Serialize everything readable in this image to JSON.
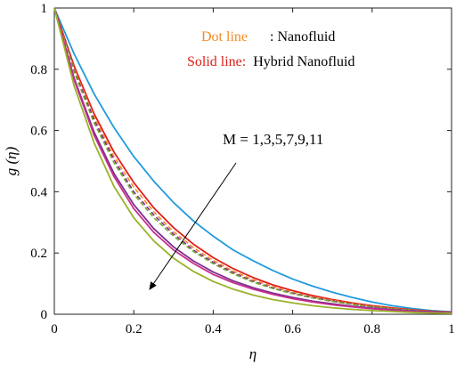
{
  "chart_data": {
    "type": "line",
    "xlabel": "η",
    "ylabel": "g (η)",
    "xlim": [
      0,
      1
    ],
    "ylim": [
      0,
      1
    ],
    "xticks": [
      "0",
      "0.2",
      "0.4",
      "0.6",
      "0.8",
      "1"
    ],
    "yticks": [
      "0",
      "0.2",
      "0.4",
      "0.6",
      "0.8",
      "1"
    ],
    "legend": {
      "dot_key": "Dot line",
      "dot_value": ": Nanofluid",
      "solid_key": "Solid line:",
      "solid_value": "Hybrid Nanofluid",
      "dot_color": "#F28C28",
      "solid_color": "#E0201B",
      "placement": "top-right"
    },
    "annotation": {
      "text": "M = 1,3,5,7,9,11"
    },
    "x": [
      0,
      0.05,
      0.1,
      0.15,
      0.2,
      0.25,
      0.3,
      0.35,
      0.4,
      0.45,
      0.5,
      0.55,
      0.6,
      0.65,
      0.7,
      0.75,
      0.8,
      0.85,
      0.9,
      0.95,
      1.0
    ],
    "series": [
      {
        "style": "solid",
        "color": "#1F9BDE",
        "values": [
          1.0,
          0.85,
          0.72,
          0.61,
          0.515,
          0.435,
          0.365,
          0.305,
          0.255,
          0.21,
          0.175,
          0.143,
          0.115,
          0.092,
          0.072,
          0.055,
          0.04,
          0.028,
          0.019,
          0.012,
          0.008
        ]
      },
      {
        "style": "solid",
        "color": "#E0201B",
        "values": [
          1.0,
          0.81,
          0.655,
          0.53,
          0.43,
          0.348,
          0.283,
          0.229,
          0.185,
          0.149,
          0.12,
          0.096,
          0.077,
          0.061,
          0.048,
          0.037,
          0.028,
          0.021,
          0.015,
          0.01,
          0.007
        ]
      },
      {
        "style": "dashed",
        "color": "#F28C28",
        "values": [
          1.0,
          0.8,
          0.645,
          0.515,
          0.415,
          0.335,
          0.27,
          0.218,
          0.176,
          0.141,
          0.113,
          0.09,
          0.072,
          0.057,
          0.045,
          0.035,
          0.026,
          0.019,
          0.014,
          0.009,
          0.006
        ]
      },
      {
        "style": "dashed",
        "color": "#7E2F8E",
        "values": [
          1.0,
          0.795,
          0.635,
          0.505,
          0.4,
          0.325,
          0.262,
          0.21,
          0.17,
          0.136,
          0.108,
          0.086,
          0.069,
          0.055,
          0.043,
          0.033,
          0.025,
          0.018,
          0.013,
          0.009,
          0.006
        ]
      },
      {
        "style": "dashed",
        "color": "#77AC30",
        "values": [
          1.0,
          0.79,
          0.625,
          0.495,
          0.392,
          0.316,
          0.255,
          0.205,
          0.165,
          0.132,
          0.105,
          0.084,
          0.067,
          0.053,
          0.042,
          0.032,
          0.024,
          0.018,
          0.013,
          0.009,
          0.006
        ]
      },
      {
        "style": "solid",
        "color": "#7E2F8E",
        "values": [
          1.0,
          0.77,
          0.595,
          0.46,
          0.358,
          0.28,
          0.22,
          0.174,
          0.138,
          0.109,
          0.087,
          0.069,
          0.055,
          0.043,
          0.034,
          0.026,
          0.02,
          0.015,
          0.011,
          0.008,
          0.005
        ]
      },
      {
        "style": "solid",
        "color": "#C62F8E",
        "values": [
          1.0,
          0.765,
          0.585,
          0.45,
          0.345,
          0.268,
          0.21,
          0.166,
          0.13,
          0.103,
          0.082,
          0.065,
          0.051,
          0.04,
          0.031,
          0.024,
          0.018,
          0.013,
          0.009,
          0.006,
          0.004
        ]
      },
      {
        "style": "solid",
        "color": "#9AB22A",
        "values": [
          1.0,
          0.745,
          0.56,
          0.418,
          0.315,
          0.24,
          0.183,
          0.14,
          0.107,
          0.082,
          0.063,
          0.048,
          0.037,
          0.028,
          0.021,
          0.016,
          0.012,
          0.009,
          0.006,
          0.004,
          0.003
        ]
      }
    ]
  }
}
